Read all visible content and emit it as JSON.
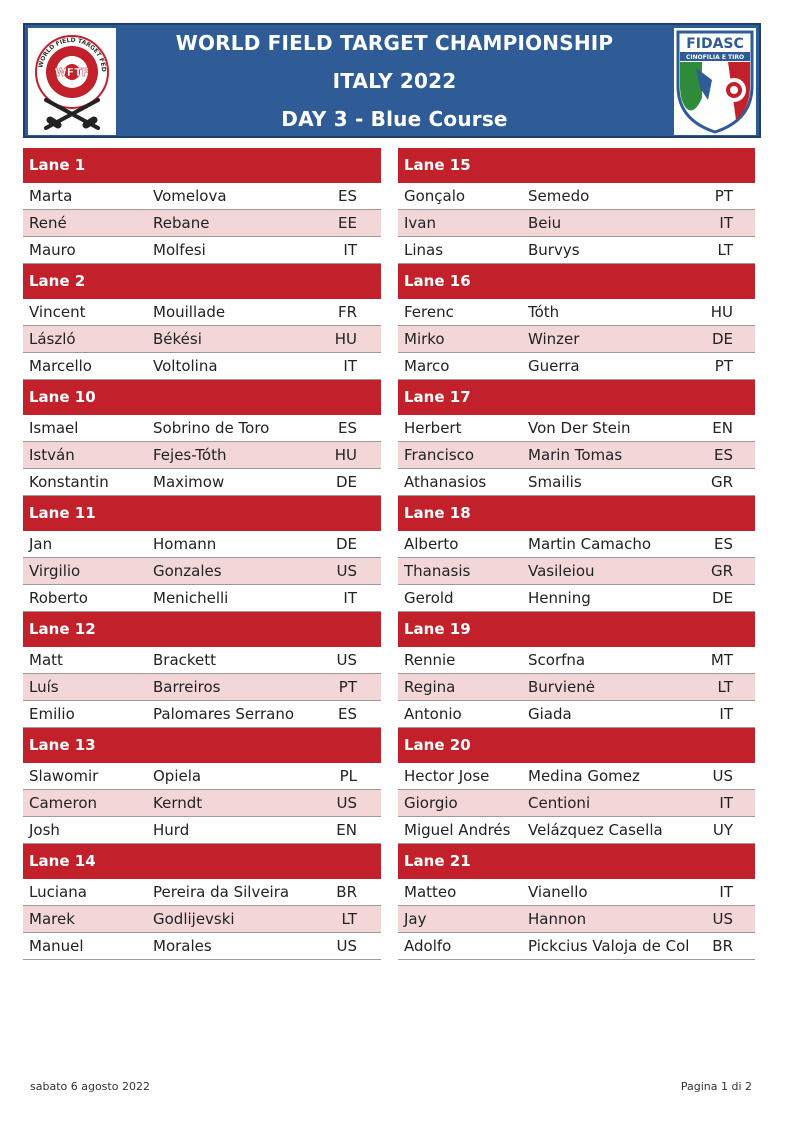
{
  "header": {
    "title": "WORLD FIELD TARGET CHAMPIONSHIP",
    "subtitle": "ITALY 2022",
    "course": "DAY 3 - Blue Course",
    "left_logo": {
      "abbr": "WFTF",
      "text": "WORLD FIELD TARGET FEDERATION"
    },
    "right_logo": {
      "abbr": "FIDASC",
      "text": "CINOFILIA E TIRO"
    }
  },
  "left_column": [
    {
      "lane": "Lane  1",
      "shooters": [
        {
          "first": "Marta",
          "last": "Vomelova",
          "country": "ES"
        },
        {
          "first": "René",
          "last": "Rebane",
          "country": "EE"
        },
        {
          "first": "Mauro",
          "last": "Molfesi",
          "country": "IT"
        }
      ]
    },
    {
      "lane": "Lane  2",
      "shooters": [
        {
          "first": "Vincent",
          "last": "Mouillade",
          "country": "FR"
        },
        {
          "first": "László",
          "last": "Békési",
          "country": "HU"
        },
        {
          "first": "Marcello",
          "last": "Voltolina",
          "country": "IT"
        }
      ]
    },
    {
      "lane": "Lane  10",
      "shooters": [
        {
          "first": "Ismael",
          "last": "Sobrino de Toro",
          "country": "ES"
        },
        {
          "first": "István",
          "last": "Fejes-Tóth",
          "country": "HU"
        },
        {
          "first": "Konstantin",
          "last": "Maximow",
          "country": "DE"
        }
      ]
    },
    {
      "lane": "Lane  11",
      "shooters": [
        {
          "first": "Jan",
          "last": "Homann",
          "country": "DE"
        },
        {
          "first": "Virgilio",
          "last": "Gonzales",
          "country": "US"
        },
        {
          "first": "Roberto",
          "last": "Menichelli",
          "country": "IT"
        }
      ]
    },
    {
      "lane": "Lane  12",
      "shooters": [
        {
          "first": "Matt",
          "last": "Brackett",
          "country": "US"
        },
        {
          "first": "Luís",
          "last": "Barreiros",
          "country": "PT"
        },
        {
          "first": "Emilio",
          "last": "Palomares Serrano",
          "country": "ES"
        }
      ]
    },
    {
      "lane": "Lane  13",
      "shooters": [
        {
          "first": "Slawomir",
          "last": "Opiela",
          "country": "PL"
        },
        {
          "first": "Cameron",
          "last": "Kerndt",
          "country": "US"
        },
        {
          "first": "Josh",
          "last": "Hurd",
          "country": "EN"
        }
      ]
    },
    {
      "lane": "Lane  14",
      "shooters": [
        {
          "first": "Luciana",
          "last": "Pereira da Silveira",
          "country": "BR"
        },
        {
          "first": "Marek",
          "last": "Godlijevski",
          "country": "LT"
        },
        {
          "first": "Manuel",
          "last": "Morales",
          "country": "US"
        }
      ]
    }
  ],
  "right_column": [
    {
      "lane": "Lane  15",
      "shooters": [
        {
          "first": "Gonçalo",
          "last": "Semedo",
          "country": "PT"
        },
        {
          "first": "Ivan",
          "last": "Beiu",
          "country": "IT"
        },
        {
          "first": "Linas",
          "last": "Burvys",
          "country": "LT"
        }
      ]
    },
    {
      "lane": "Lane  16",
      "shooters": [
        {
          "first": "Ferenc",
          "last": "Tóth",
          "country": "HU"
        },
        {
          "first": "Mirko",
          "last": "Winzer",
          "country": "DE"
        },
        {
          "first": "Marco",
          "last": "Guerra",
          "country": "PT"
        }
      ]
    },
    {
      "lane": "Lane  17",
      "shooters": [
        {
          "first": "Herbert",
          "last": "Von Der Stein",
          "country": "EN"
        },
        {
          "first": "Francisco",
          "last": "Marin Tomas",
          "country": "ES"
        },
        {
          "first": "Athanasios",
          "last": "Smailis",
          "country": "GR"
        }
      ]
    },
    {
      "lane": "Lane  18",
      "shooters": [
        {
          "first": "Alberto",
          "last": "Martin Camacho",
          "country": "ES"
        },
        {
          "first": "Thanasis",
          "last": "Vasileiou",
          "country": "GR"
        },
        {
          "first": "Gerold",
          "last": "Henning",
          "country": "DE"
        }
      ]
    },
    {
      "lane": "Lane  19",
      "shooters": [
        {
          "first": "Rennie",
          "last": "Scorfna",
          "country": "MT"
        },
        {
          "first": "Regina",
          "last": "Burvienė",
          "country": "LT"
        },
        {
          "first": "Antonio",
          "last": "Giada",
          "country": "IT"
        }
      ]
    },
    {
      "lane": "Lane  20",
      "shooters": [
        {
          "first": "Hector Jose",
          "last": "Medina Gomez",
          "country": "US"
        },
        {
          "first": "Giorgio",
          "last": "Centioni",
          "country": "IT"
        },
        {
          "first": "Miguel Andrés",
          "last": "Velázquez Casella",
          "country": "UY"
        }
      ]
    },
    {
      "lane": "Lane  21",
      "shooters": [
        {
          "first": "Matteo",
          "last": "Vianello",
          "country": "IT"
        },
        {
          "first": "Jay",
          "last": "Hannon",
          "country": "US"
        },
        {
          "first": "Adolfo",
          "last": "Pickcius Valoja de Col",
          "country": "BR"
        }
      ]
    }
  ],
  "footer": {
    "date": "sabato 6 agosto 2022",
    "page": "Pagina 1 di 2"
  },
  "colors": {
    "header_bg": "#2f5c96",
    "lane_header_bg": "#c2202a",
    "alt_row_bg": "#f3d7d8"
  }
}
